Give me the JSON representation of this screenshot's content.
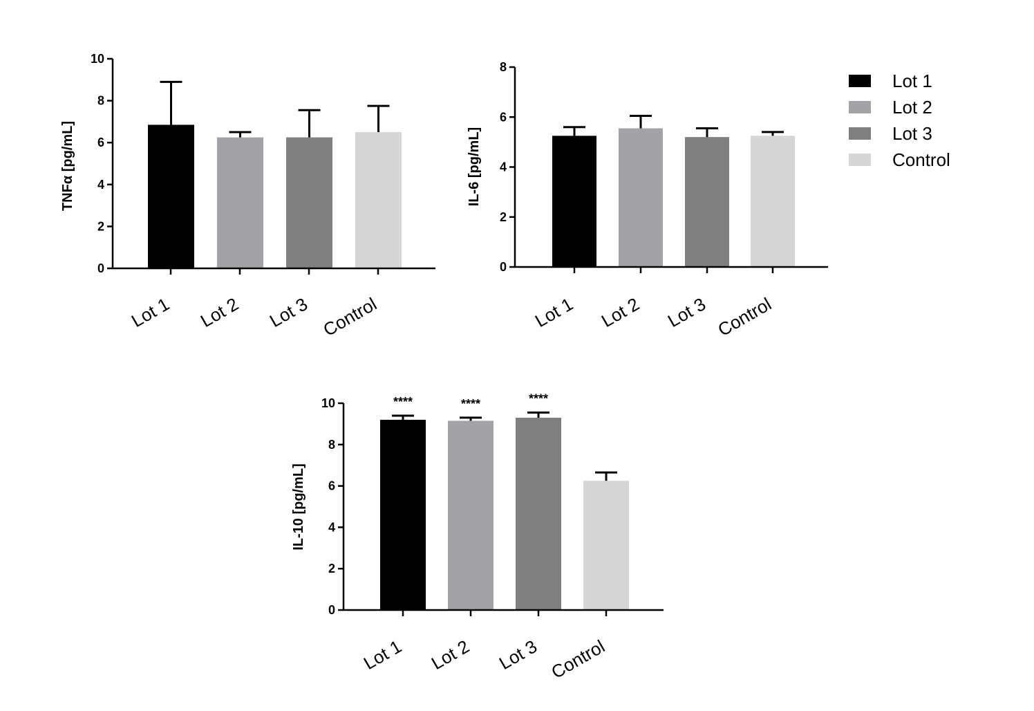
{
  "colors": {
    "Lot 1": "#000000",
    "Lot 2": "#a3a3a7",
    "Lot 3": "#7f7f7f",
    "Control": "#d6d6d6"
  },
  "legend": {
    "items": [
      "Lot 1",
      "Lot 2",
      "Lot 3",
      "Control"
    ],
    "placement": "right"
  },
  "chart_data": [
    {
      "type": "bar",
      "ylabel": "TNFα   [pg/mL]",
      "categories": [
        "Lot 1",
        "Lot 2",
        "Lot 3",
        "Control"
      ],
      "values": [
        6.85,
        6.25,
        6.25,
        6.5
      ],
      "errors": [
        2.05,
        0.25,
        1.3,
        1.25
      ],
      "significance": [
        "",
        "",
        "",
        ""
      ],
      "ylim": [
        0,
        10
      ],
      "yticks": [
        0,
        2,
        4,
        6,
        8,
        10
      ]
    },
    {
      "type": "bar",
      "ylabel": "IL-6 [pg/mL]",
      "categories": [
        "Lot 1",
        "Lot 2",
        "Lot 3",
        "Control"
      ],
      "values": [
        5.25,
        5.55,
        5.2,
        5.25
      ],
      "errors": [
        0.35,
        0.5,
        0.35,
        0.15
      ],
      "significance": [
        "",
        "",
        "",
        ""
      ],
      "ylim": [
        0,
        8
      ],
      "yticks": [
        0,
        2,
        4,
        6,
        8
      ]
    },
    {
      "type": "bar",
      "ylabel": "IL-10 [pg/mL]",
      "categories": [
        "Lot 1",
        "Lot 2",
        "Lot 3",
        "Control"
      ],
      "values": [
        9.2,
        9.15,
        9.3,
        6.25
      ],
      "errors": [
        0.2,
        0.15,
        0.25,
        0.4
      ],
      "significance": [
        "****",
        "****",
        "****",
        ""
      ],
      "ylim": [
        0,
        10
      ],
      "yticks": [
        0,
        2,
        4,
        6,
        8,
        10
      ]
    }
  ]
}
